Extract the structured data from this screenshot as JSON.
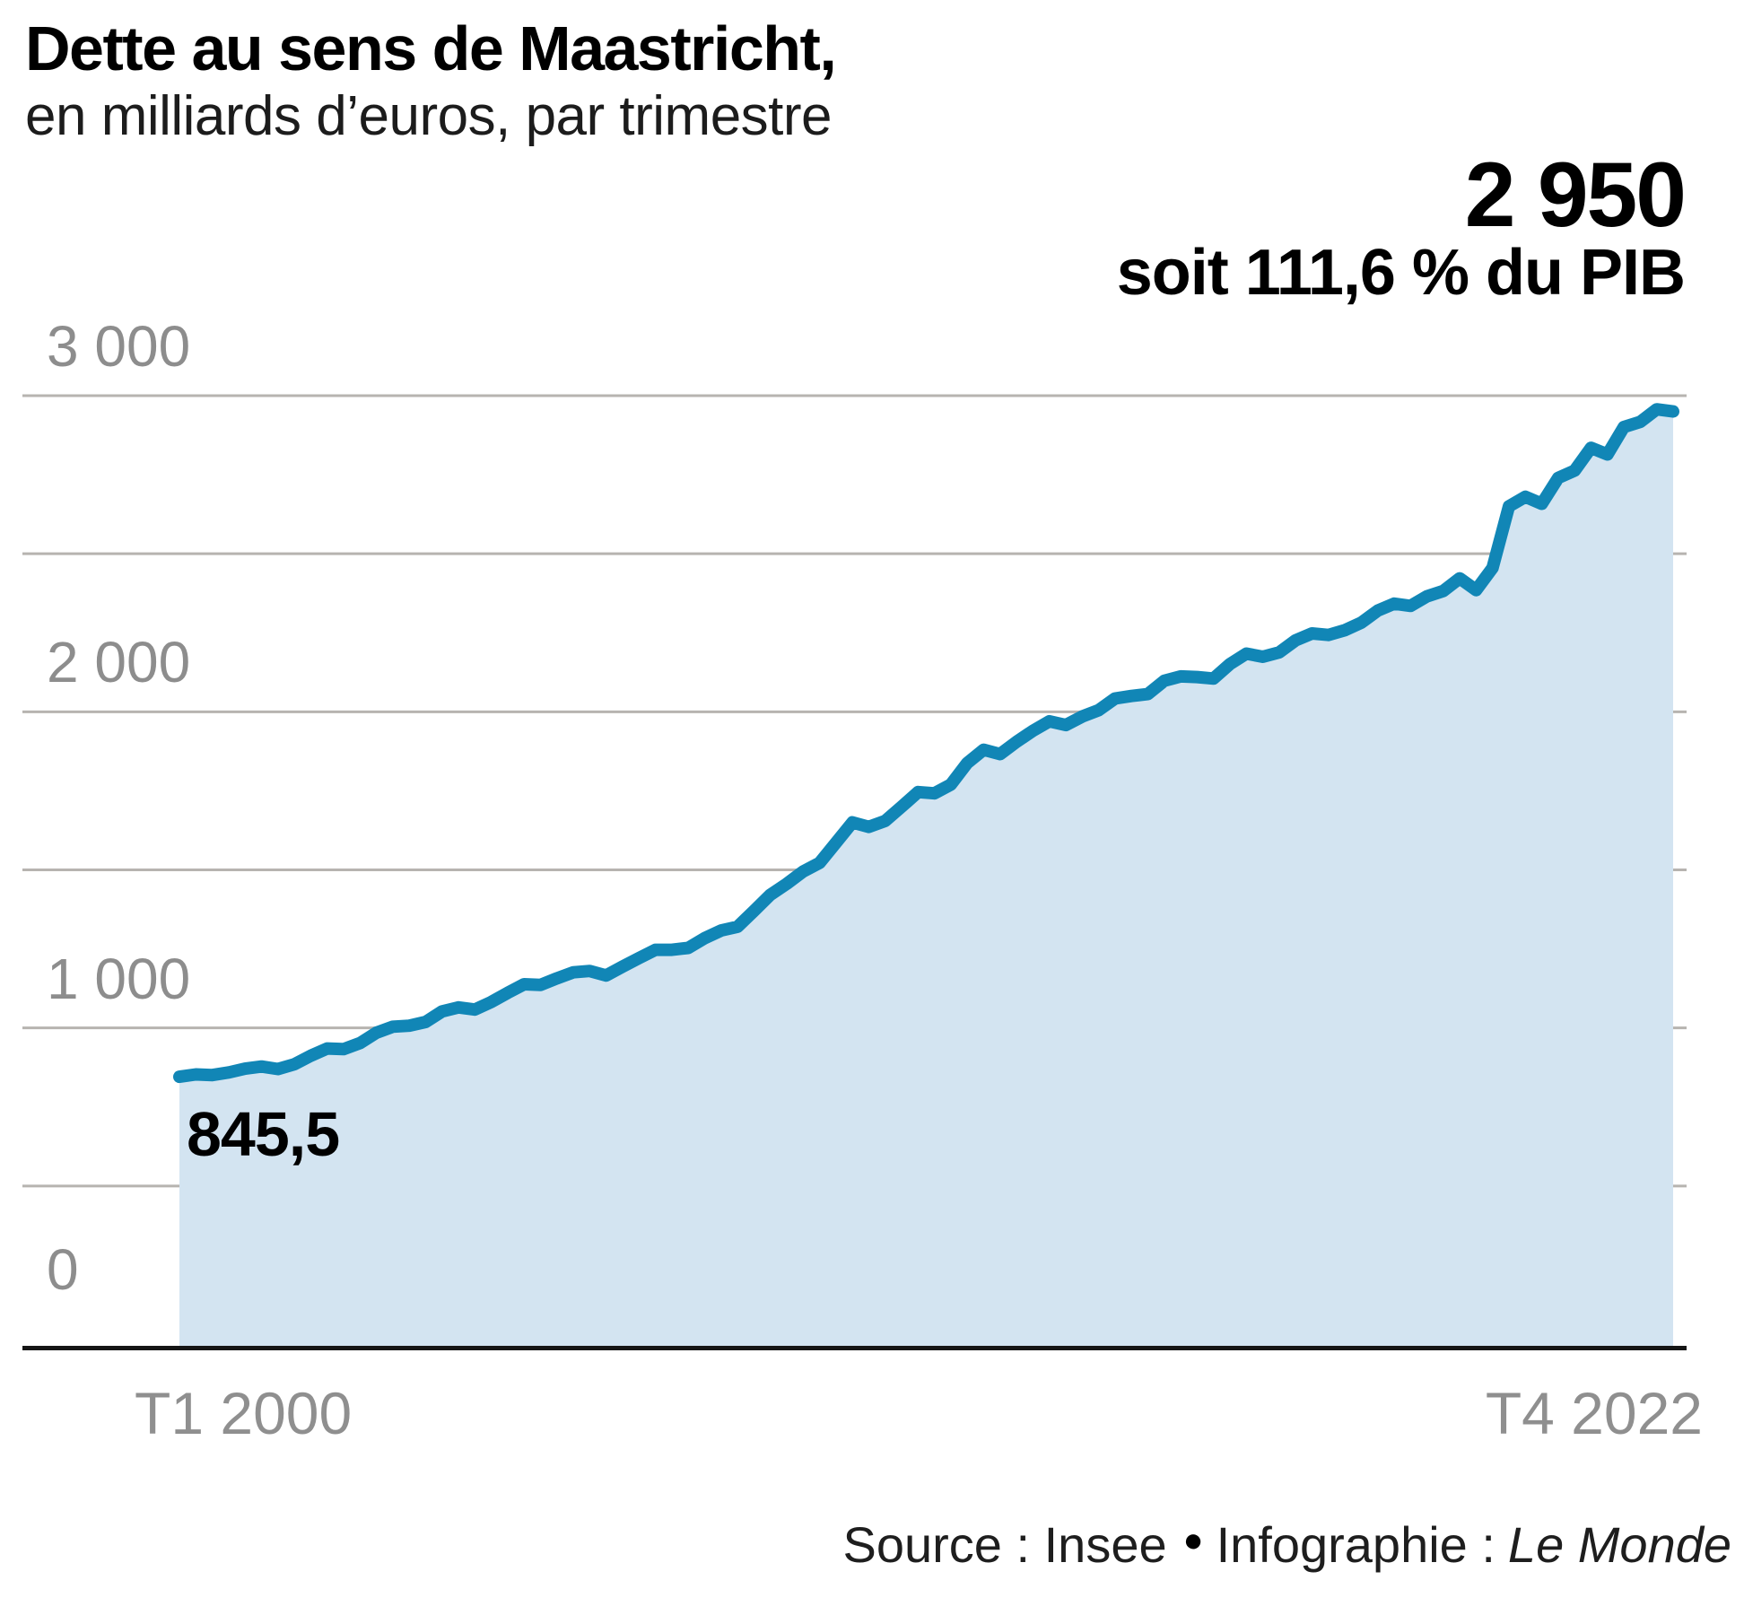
{
  "header": {
    "title": "Dette au sens de Maastricht,",
    "subtitle": "en milliards d’euros, par trimestre"
  },
  "annotation": {
    "end_value": "2 950",
    "end_detail": "soit 111,6 % du PIB",
    "start_value": "845,5"
  },
  "x_axis": {
    "start_label": "T1 2000",
    "end_label": "T4 2022"
  },
  "footer": {
    "source": "Source : Insee",
    "separator": "●",
    "credit": "Infographie :",
    "credit_name": "Le Monde"
  },
  "colors": {
    "line": "#1186b6",
    "fill": "#d3e4f1",
    "gridline": "#b7b4b0",
    "baseline": "#151515",
    "tick_text": "#8d8d8d",
    "text": "#000000"
  },
  "chart_data": {
    "type": "area",
    "title": "Dette au sens de Maastricht, en milliards d’euros, par trimestre",
    "ylabel": "milliards d'euros",
    "x_start": "T1 2000",
    "x_end": "T4 2022",
    "frequency": "quarterly",
    "ylim": [
      0,
      3000
    ],
    "y_gridlines": [
      0,
      500,
      1000,
      1500,
      2000,
      2500,
      3000
    ],
    "y_ticks": [
      {
        "value": 3000,
        "label": "3 000"
      },
      {
        "value": 2000,
        "label": "2 000"
      },
      {
        "value": 1000,
        "label": "1 000"
      },
      {
        "value": 0,
        "label": "0"
      }
    ],
    "first_point_label": "845,5",
    "last_point_label": "2 950",
    "last_point_share_gdp": "111,6 % du PIB",
    "legend": false,
    "grid": true,
    "values": [
      845.5,
      853,
      851,
      859,
      871,
      878,
      870,
      885,
      912,
      935,
      933,
      952,
      985,
      1004,
      1007,
      1019,
      1052,
      1065,
      1058,
      1082,
      1111,
      1138,
      1136,
      1157,
      1176,
      1180,
      1166,
      1194,
      1221,
      1247,
      1247,
      1253,
      1284,
      1308,
      1320,
      1370,
      1421,
      1456,
      1495,
      1522,
      1586,
      1650,
      1636,
      1655,
      1700,
      1746,
      1742,
      1770,
      1838,
      1880,
      1866,
      1905,
      1940,
      1970,
      1958,
      1985,
      2005,
      2042,
      2050,
      2056,
      2098,
      2112,
      2110,
      2105,
      2151,
      2184,
      2174,
      2188,
      2226,
      2248,
      2243,
      2258,
      2282,
      2320,
      2342,
      2335,
      2365,
      2382,
      2422,
      2385,
      2455,
      2650,
      2680,
      2658,
      2740,
      2763,
      2835,
      2814,
      2901,
      2917,
      2957,
      2950
    ]
  }
}
